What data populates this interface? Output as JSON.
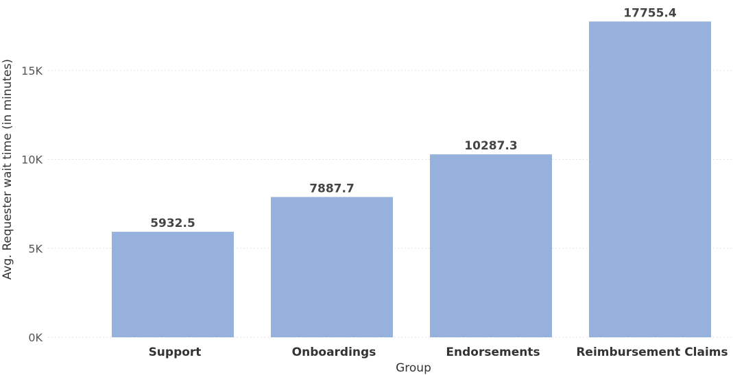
{
  "chart_data": {
    "type": "bar",
    "xlabel": "Group",
    "ylabel": "Avg. Requester wait time (in minutes)",
    "categories": [
      "Support",
      "Onboardings",
      "Endorsements",
      "Reimbursement Claims"
    ],
    "values": [
      5932.5,
      7887.7,
      10287.3,
      17755.4
    ],
    "data_labels": [
      "5932.5",
      "7887.7",
      "10287.3",
      "17755.4"
    ],
    "yticks": [
      0,
      5000,
      10000,
      15000
    ],
    "ytick_labels": [
      "0K",
      "5K",
      "10K",
      "15K"
    ],
    "ylim": [
      0,
      18000
    ],
    "grid": true,
    "bar_color": "#96b2dc"
  }
}
